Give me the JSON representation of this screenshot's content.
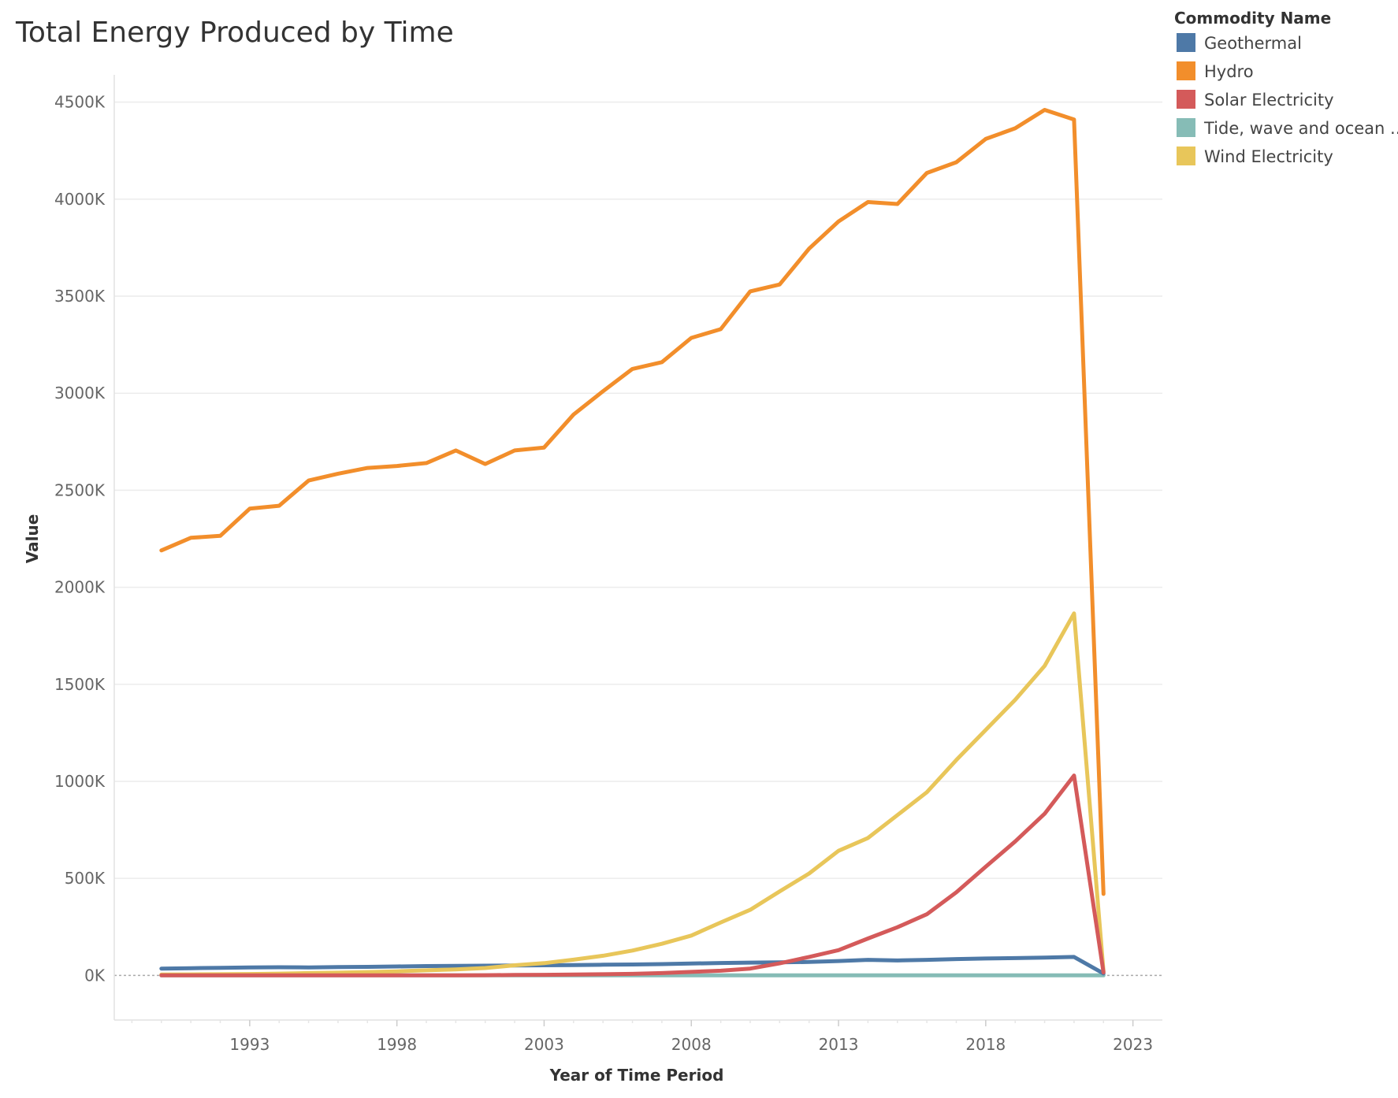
{
  "chart_data": {
    "type": "line",
    "title": "Total Energy Produced by Time",
    "xlabel": "Year of Time Period",
    "ylabel": "Value",
    "xlim": [
      1988.4,
      2024
    ],
    "ylim": [
      -230000,
      4600000
    ],
    "x_ticks": [
      1993,
      1998,
      2003,
      2008,
      2013,
      2018,
      2023
    ],
    "y_ticks": [
      {
        "value": 0,
        "label": "0K"
      },
      {
        "value": 500000,
        "label": "500K"
      },
      {
        "value": 1000000,
        "label": "1000K"
      },
      {
        "value": 1500000,
        "label": "1500K"
      },
      {
        "value": 2000000,
        "label": "2000K"
      },
      {
        "value": 2500000,
        "label": "2500K"
      },
      {
        "value": 3000000,
        "label": "3000K"
      },
      {
        "value": 3500000,
        "label": "3500K"
      },
      {
        "value": 4000000,
        "label": "4000K"
      },
      {
        "value": 4500000,
        "label": "4500K"
      }
    ],
    "grid": true,
    "legend": {
      "title": "Commodity Name",
      "position": "top-right"
    },
    "x": [
      1990,
      1991,
      1992,
      1993,
      1994,
      1995,
      1996,
      1997,
      1998,
      1999,
      2000,
      2001,
      2002,
      2003,
      2004,
      2005,
      2006,
      2007,
      2008,
      2009,
      2010,
      2011,
      2012,
      2013,
      2014,
      2015,
      2016,
      2017,
      2018,
      2019,
      2020,
      2021,
      2022
    ],
    "series": [
      {
        "name": "Geothermal",
        "color": "#4e79a7",
        "values": [
          35000,
          37000,
          39000,
          41000,
          42000,
          41000,
          43000,
          44000,
          46000,
          48000,
          49000,
          50000,
          51000,
          52000,
          53000,
          55000,
          56000,
          58000,
          61000,
          64000,
          66000,
          67000,
          69000,
          74000,
          80000,
          77000,
          80000,
          84000,
          87000,
          89000,
          92000,
          95000,
          10000
        ]
      },
      {
        "name": "Hydro",
        "color": "#f28e2b",
        "values": [
          2190000,
          2255000,
          2265000,
          2405000,
          2420000,
          2550000,
          2585000,
          2615000,
          2625000,
          2640000,
          2705000,
          2635000,
          2705000,
          2720000,
          2890000,
          3010000,
          3125000,
          3160000,
          3285000,
          3330000,
          3525000,
          3560000,
          3745000,
          3885000,
          3985000,
          3975000,
          4135000,
          4190000,
          4310000,
          4365000,
          4460000,
          4410000,
          420000
        ]
      },
      {
        "name": "Solar Electricity",
        "color": "#d45a5a",
        "values": [
          0,
          0,
          0,
          0,
          0,
          0,
          0,
          0,
          0,
          0,
          0,
          1000,
          2000,
          3000,
          4000,
          6000,
          8000,
          12000,
          18000,
          24000,
          35000,
          62000,
          95000,
          130000,
          190000,
          248000,
          315000,
          428000,
          560000,
          690000,
          833000,
          1030000,
          15000
        ]
      },
      {
        "name": "Tide, wave and ocean ..",
        "color": "#86bcb6",
        "values": [
          0,
          0,
          0,
          0,
          0,
          0,
          0,
          0,
          0,
          0,
          0,
          0,
          0,
          0,
          0,
          0,
          0,
          0,
          0,
          0,
          0,
          0,
          0,
          0,
          0,
          0,
          0,
          0,
          0,
          0,
          0,
          0,
          0
        ]
      },
      {
        "name": "Wind Electricity",
        "color": "#e8c65a",
        "values": [
          4000,
          5000,
          6000,
          7000,
          9000,
          12000,
          14000,
          17000,
          21000,
          26000,
          31000,
          38000,
          52000,
          63000,
          81000,
          101000,
          128000,
          163000,
          205000,
          273000,
          338000,
          433000,
          525000,
          642000,
          708000,
          826000,
          944000,
          1110000,
          1265000,
          1420000,
          1595000,
          1865000,
          20000
        ]
      }
    ]
  }
}
